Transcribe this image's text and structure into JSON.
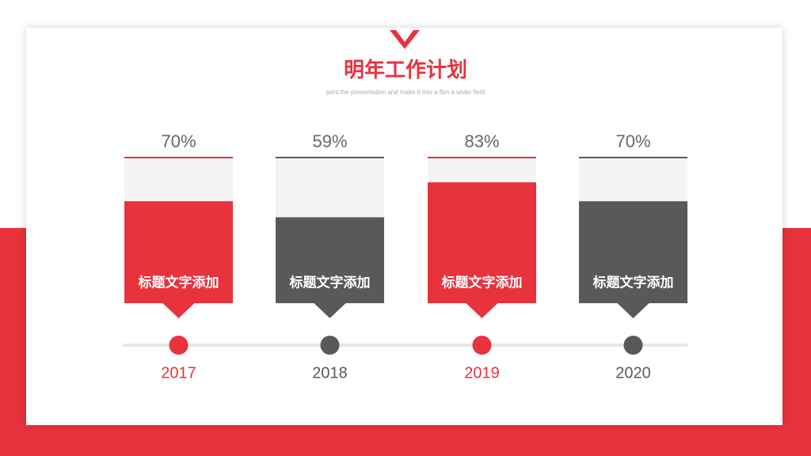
{
  "chart_data": {
    "type": "bar",
    "title": "明年工作计划",
    "subtitle": "print the presentation and make it into a film a wider field",
    "categories": [
      "2017",
      "2018",
      "2019",
      "2020"
    ],
    "values": [
      70,
      59,
      83,
      70
    ],
    "value_labels": [
      "70%",
      "59%",
      "83%",
      "70%"
    ],
    "bar_labels": [
      "标题文字添加",
      "标题文字添加",
      "标题文字添加",
      "标题文字添加"
    ],
    "colors": [
      "#e8323c",
      "#595959",
      "#e8323c",
      "#595959"
    ],
    "ylim": [
      0,
      100
    ]
  }
}
